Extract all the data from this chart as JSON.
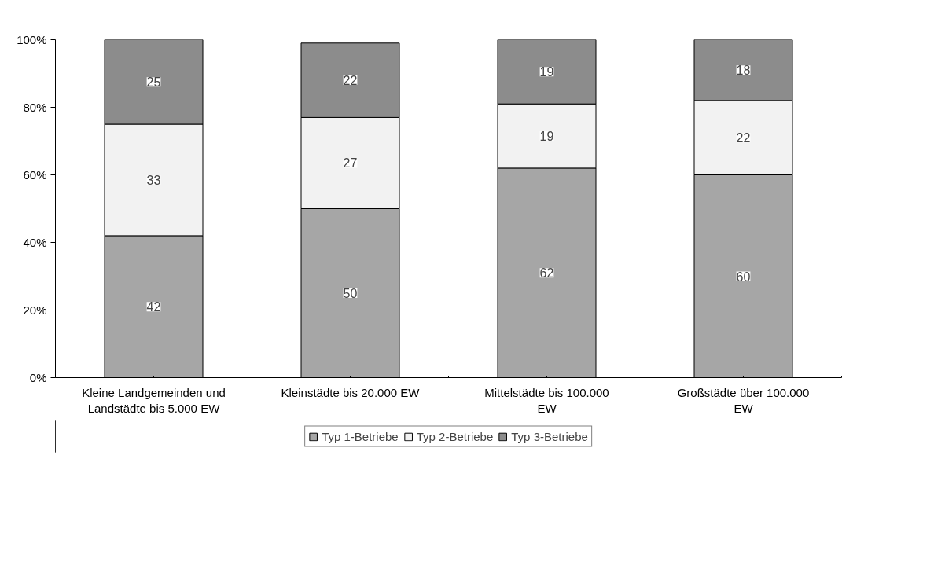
{
  "chart_data": {
    "type": "bar",
    "stacked": true,
    "categories": [
      "Kleine Landgemeinden und Landstädte bis 5.000 EW",
      "Kleinstädte bis 20.000 EW",
      "Mittelstädte bis 100.000 EW",
      "Großstädte über 100.000 EW"
    ],
    "series": [
      {
        "name": "Typ 1-Betriebe",
        "color": "#a6a6a6",
        "values": [
          42,
          50,
          62,
          60
        ]
      },
      {
        "name": "Typ 2-Betriebe",
        "color": "#f2f2f2",
        "values": [
          33,
          27,
          19,
          22
        ]
      },
      {
        "name": "Typ 3-Betriebe",
        "color": "#8c8c8c",
        "values": [
          25,
          22,
          19,
          18
        ]
      }
    ],
    "ylim": [
      0,
      100
    ],
    "yticks": [
      {
        "value": 0,
        "label": "0%"
      },
      {
        "value": 20,
        "label": "20%"
      },
      {
        "value": 40,
        "label": "40%"
      },
      {
        "value": 60,
        "label": "60%"
      },
      {
        "value": 80,
        "label": "80%"
      },
      {
        "value": 100,
        "label": "100%"
      }
    ],
    "data_labels": true,
    "grid": false,
    "legend": "bottom"
  }
}
